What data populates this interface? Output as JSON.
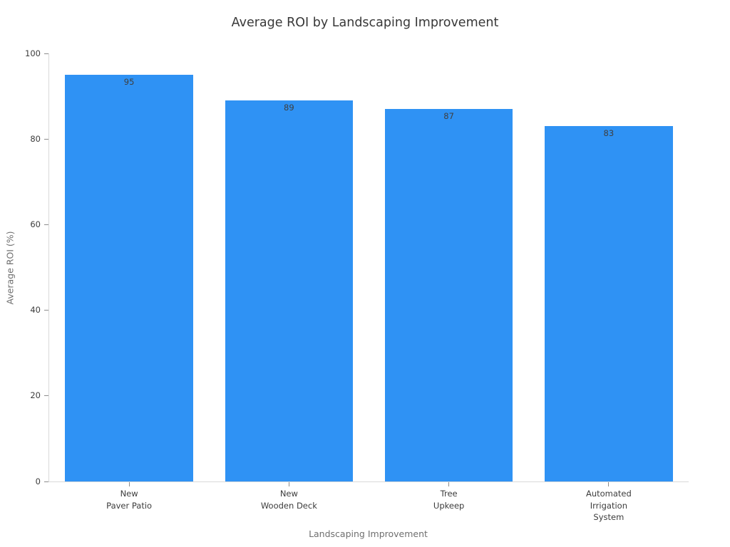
{
  "chart_data": {
    "type": "bar",
    "title": "Average ROI by Landscaping Improvement",
    "xlabel": "Landscaping Improvement",
    "ylabel": "Average ROI (%)",
    "categories": [
      "New\nPaver Patio",
      "New\nWooden Deck",
      "Tree\nUpkeep",
      "Automated\nIrrigation\nSystem"
    ],
    "values": [
      95,
      89,
      87,
      83
    ],
    "bar_value_labels": [
      "95",
      "89",
      "87",
      "83"
    ],
    "ylim": [
      0,
      100
    ],
    "yticks": [
      0,
      20,
      40,
      60,
      80,
      100
    ],
    "bar_color": "#2F92F4",
    "bar_label_color": "#3f3f3f",
    "grid": "off",
    "legend": "none",
    "bar_width_fraction": 0.8
  }
}
